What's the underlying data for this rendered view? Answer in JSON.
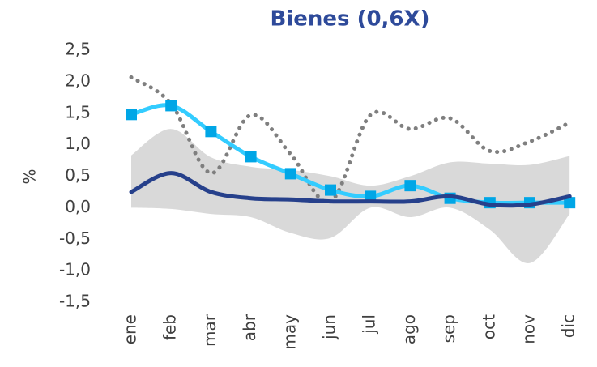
{
  "chart_data": {
    "type": "line",
    "title": "Bienes (0,6X)",
    "ylabel": "%",
    "categories": [
      "ene",
      "feb",
      "mar",
      "abr",
      "may",
      "jun",
      "jul",
      "ago",
      "sep",
      "oct",
      "nov",
      "dic"
    ],
    "ylim": [
      -1.5,
      2.5
    ],
    "yticks": [
      {
        "value": -1.5,
        "label": "-1,5"
      },
      {
        "value": -1,
        "label": "-1,0"
      },
      {
        "value": -0.5,
        "label": "-0,5"
      },
      {
        "value": 0,
        "label": "0,0"
      },
      {
        "value": 0.5,
        "label": "0,5"
      },
      {
        "value": 1,
        "label": "1,0"
      },
      {
        "value": 1.5,
        "label": "1,5"
      },
      {
        "value": 2,
        "label": "2,0"
      },
      {
        "value": 2.5,
        "label": "2,5"
      }
    ],
    "band": {
      "color": "#d9d9d9",
      "upper": [
        0.83,
        1.25,
        0.8,
        0.65,
        0.6,
        0.5,
        0.35,
        0.5,
        0.72,
        0.7,
        0.68,
        0.82
      ],
      "lower": [
        0.0,
        -0.02,
        -0.1,
        -0.15,
        -0.4,
        -0.48,
        0.0,
        -0.15,
        0.0,
        -0.35,
        -0.88,
        -0.1
      ]
    },
    "series": [
      {
        "color": "#7f7f7f",
        "dash": "dotted",
        "values": [
          2.07,
          1.65,
          0.55,
          1.47,
          0.85,
          0.1,
          1.47,
          1.25,
          1.42,
          0.9,
          1.05,
          1.35
        ]
      },
      {
        "color": "#33ccff",
        "marker": "square",
        "values": [
          1.48,
          1.62,
          1.21,
          0.81,
          0.54,
          0.28,
          0.18,
          0.35,
          0.15,
          0.08,
          0.08,
          0.08
        ]
      },
      {
        "color": "#26408b",
        "values": [
          0.25,
          0.55,
          0.25,
          0.15,
          0.13,
          0.1,
          0.1,
          0.1,
          0.18,
          0.05,
          0.05,
          0.18
        ]
      }
    ]
  }
}
